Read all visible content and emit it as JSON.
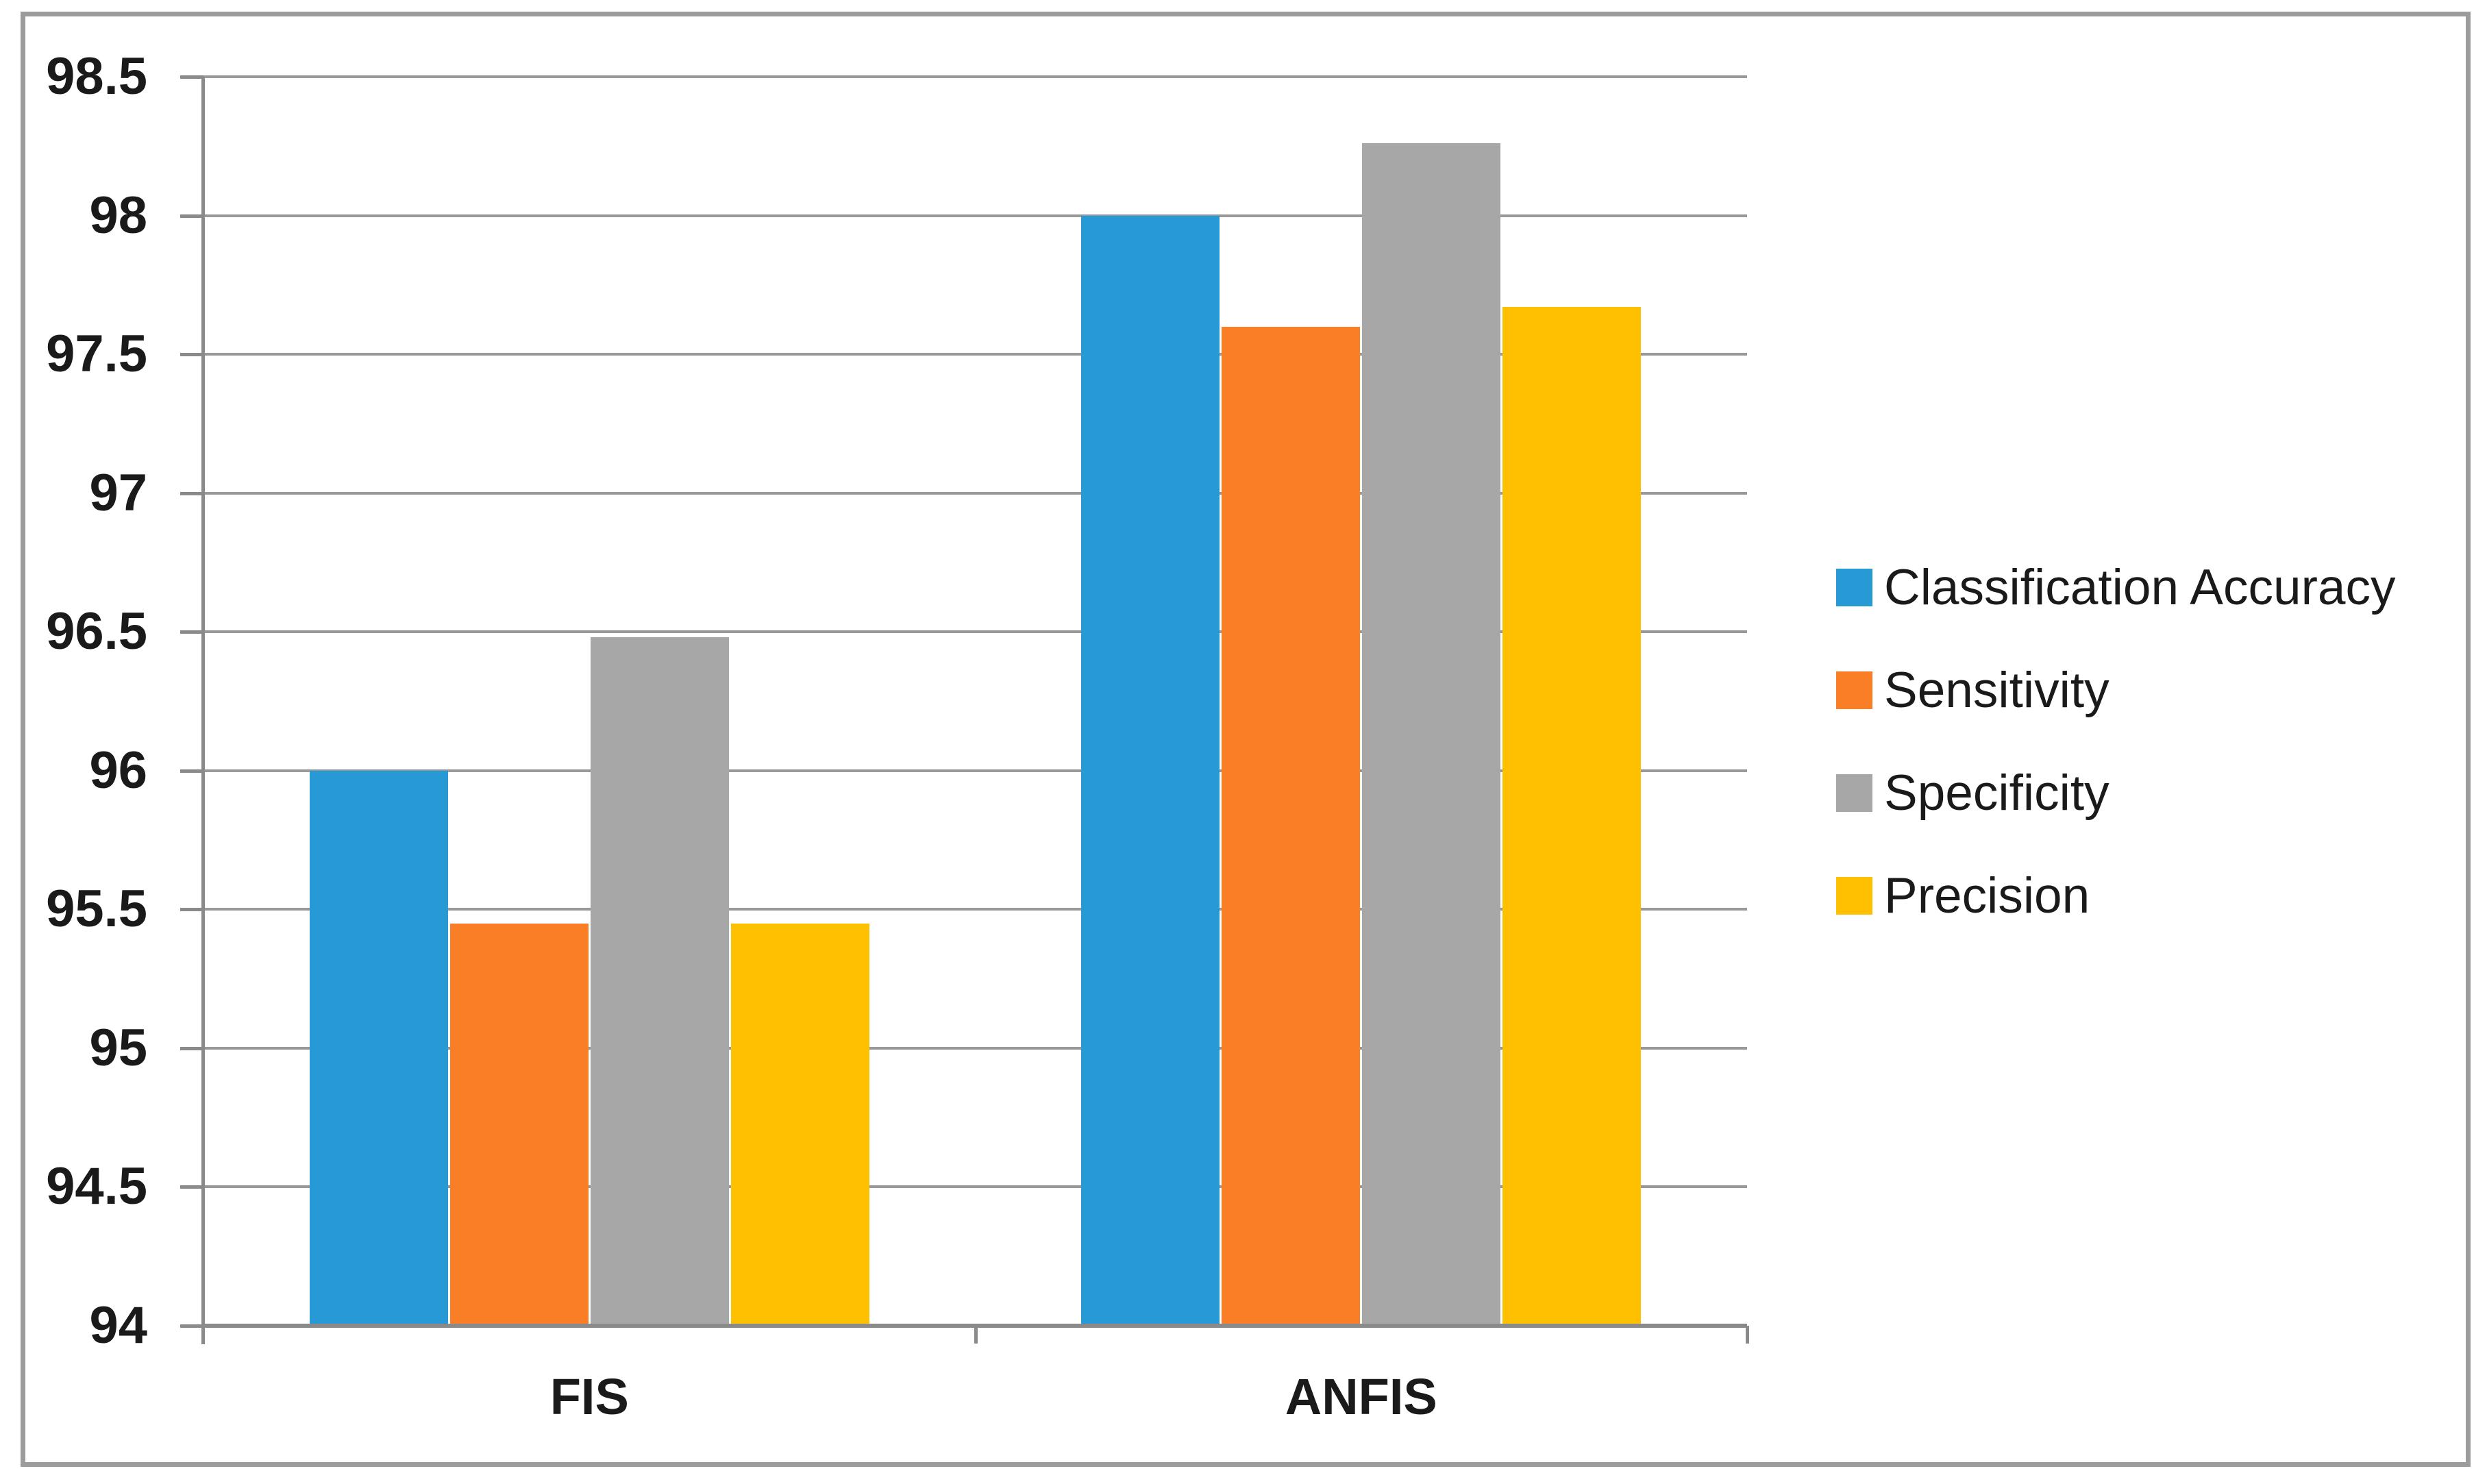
{
  "chart_data": {
    "type": "bar",
    "title": "",
    "xlabel": "",
    "ylabel": "",
    "categories": [
      "FIS",
      "ANFIS"
    ],
    "series": [
      {
        "name": "Classification Accuracy",
        "color": "#2799D5",
        "values": [
          96.0,
          98.0
        ]
      },
      {
        "name": "Sensitivity",
        "color": "#FA7E26",
        "values": [
          95.45,
          97.6
        ]
      },
      {
        "name": "Specificity",
        "color": "#A7A7A7",
        "values": [
          96.48,
          98.26
        ]
      },
      {
        "name": "Precision",
        "color": "#FEC001",
        "values": [
          95.45,
          97.67
        ]
      }
    ],
    "y_axis": {
      "min": 94,
      "max": 98.5,
      "step": 0.5,
      "tick_labels": [
        "98.5",
        "98",
        "97.5",
        "97",
        "96.5",
        "96",
        "95.5",
        "95",
        "94.5",
        "94"
      ]
    },
    "grid": true,
    "legend_position": "right"
  },
  "colors": {
    "grid_line": "#999999",
    "axis_line": "#8a8a8a",
    "figure_border": "#9c9c9c",
    "text": "#1a1a1a",
    "background": "#ffffff"
  }
}
